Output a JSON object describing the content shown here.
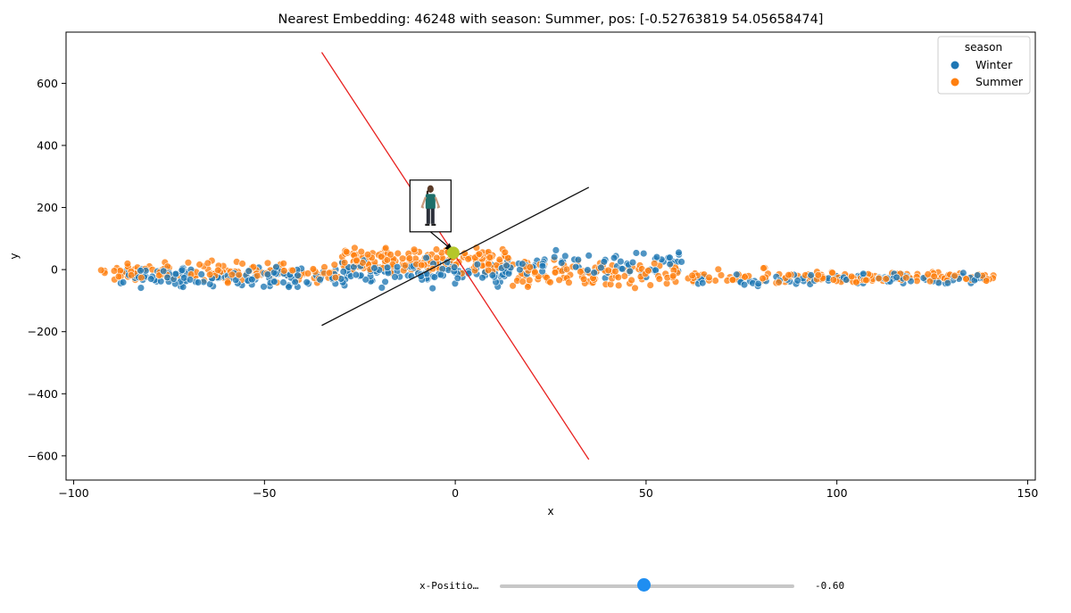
{
  "chart_data": {
    "type": "scatter",
    "title": "Nearest Embedding: 46248 with season: Summer, pos: [-0.52763819 54.05658474]",
    "xlabel": "x",
    "ylabel": "y",
    "xlim": [
      -102,
      152
    ],
    "ylim": [
      -678,
      765
    ],
    "xticks": [
      -100,
      -50,
      0,
      50,
      100,
      150
    ],
    "xtick_labels": [
      "−100",
      "−50",
      "0",
      "50",
      "100",
      "150"
    ],
    "yticks": [
      -600,
      -400,
      -200,
      0,
      200,
      400,
      600
    ],
    "ytick_labels": [
      "−600",
      "−400",
      "−200",
      "0",
      "200",
      "400",
      "600"
    ],
    "grid": false,
    "legend": {
      "title": "season",
      "placement": "top-right",
      "entries": [
        {
          "label": "Winter",
          "color": "#1f77b4"
        },
        {
          "label": "Summer",
          "color": "#ff7f0e"
        }
      ]
    },
    "series": [
      {
        "name": "Winter",
        "color": "#1f77b4",
        "clusters": [
          {
            "x_range": [
              -88,
              -30
            ],
            "y_center": -25,
            "y_spread": 45,
            "count": 140
          },
          {
            "x_range": [
              -30,
              15
            ],
            "y_center": -10,
            "y_spread": 60,
            "count": 120
          },
          {
            "x_range": [
              15,
              60
            ],
            "y_center": 20,
            "y_spread": 55,
            "count": 70
          },
          {
            "x_range": [
              60,
              100
            ],
            "y_center": -35,
            "y_spread": 30,
            "count": 35
          },
          {
            "x_range": [
              100,
              140
            ],
            "y_center": -28,
            "y_spread": 22,
            "count": 55
          }
        ]
      },
      {
        "name": "Summer",
        "color": "#ff7f0e",
        "clusters": [
          {
            "x_range": [
              -93,
              -30
            ],
            "y_center": -10,
            "y_spread": 45,
            "count": 140
          },
          {
            "x_range": [
              -30,
              15
            ],
            "y_center": 25,
            "y_spread": 60,
            "count": 190
          },
          {
            "x_range": [
              15,
              60
            ],
            "y_center": -15,
            "y_spread": 65,
            "count": 110
          },
          {
            "x_range": [
              60,
              100
            ],
            "y_center": -25,
            "y_spread": 35,
            "count": 60
          },
          {
            "x_range": [
              100,
              142
            ],
            "y_center": -25,
            "y_spread": 22,
            "count": 90
          }
        ]
      }
    ],
    "highlight_point": {
      "x": -0.53,
      "y": 54.06,
      "color": "#b5c72a",
      "label": "Nearest Embedding"
    },
    "lines": [
      {
        "name": "red-direction-line",
        "color": "#e8211f",
        "from": [
          -35,
          700
        ],
        "to": [
          35,
          -612
        ]
      },
      {
        "name": "black-direction-line",
        "color": "#111111",
        "from": [
          -35,
          -180
        ],
        "to": [
          35,
          265
        ]
      }
    ],
    "annotation": {
      "image_center": [
        -6.5,
        205
      ],
      "arrow_to": [
        -0.53,
        54.06
      ]
    }
  },
  "slider": {
    "label": "x-Positio…",
    "value_text": "-0.60",
    "fraction": 0.49
  }
}
